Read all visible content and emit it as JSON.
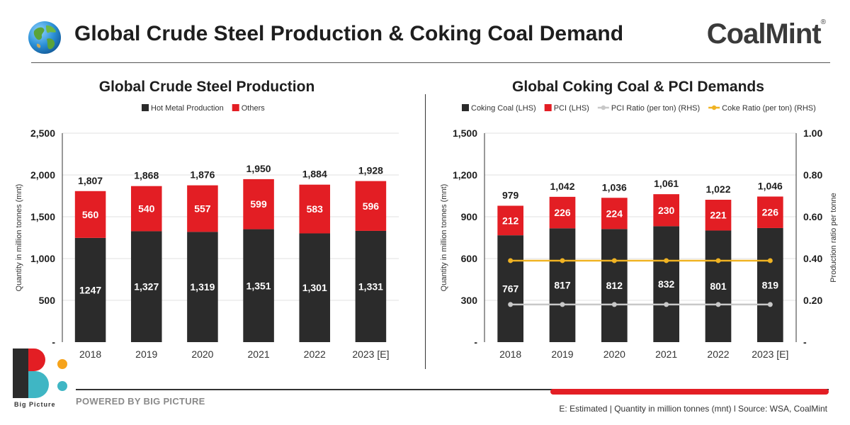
{
  "header": {
    "title": "Global Crude Steel Production & Coking Coal Demand",
    "brand": "CoalMint",
    "brand_mark": "®",
    "globe_icon": "globe-icon"
  },
  "footer": {
    "powered_by": "POWERED BY BIG PICTURE",
    "logo_caption": "Big Picture",
    "footnote": "E: Estimated | Quantity in million tonnes (mnt)  l  Source: WSA, CoalMint",
    "progress_fraction": 0.37
  },
  "colors": {
    "black": "#2b2b2b",
    "red": "#e31e24",
    "gray_line": "#c8c8c8",
    "gold_line": "#f0b323",
    "logo_orange": "#f6a31b",
    "logo_teal": "#3fb6c4"
  },
  "chart_data": [
    {
      "type": "bar",
      "stacked": true,
      "title": "Global Crude Steel Production",
      "categories": [
        "2018",
        "2019",
        "2020",
        "2021",
        "2022",
        "2023 [E]"
      ],
      "series": [
        {
          "name": "Hot Metal Production",
          "values": [
            1247,
            1327,
            1319,
            1351,
            1301,
            1331
          ],
          "labels": [
            "1247",
            "1,327",
            "1,319",
            "1,351",
            "1,301",
            "1,331"
          ]
        },
        {
          "name": "Others",
          "values": [
            560,
            540,
            557,
            599,
            583,
            596
          ],
          "labels": [
            "560",
            "540",
            "557",
            "599",
            "583",
            "596"
          ]
        }
      ],
      "totals": [
        "1,807",
        "1,868",
        "1,876",
        "1,950",
        "1,884",
        "1,928"
      ],
      "ylabel": "Quantity in million tonnes (mnt)",
      "ylim": [
        0,
        2500
      ],
      "yticks": [
        0,
        500,
        1000,
        1500,
        2000,
        2500
      ],
      "ytick_labels": [
        "-",
        "500",
        "1,000",
        "1,500",
        "2,000",
        "2,500"
      ],
      "grid": true,
      "legend": "top-center"
    },
    {
      "type": "bar",
      "stacked": true,
      "title": "Global Coking Coal & PCI Demands",
      "categories": [
        "2018",
        "2019",
        "2020",
        "2021",
        "2022",
        "2023 [E]"
      ],
      "series": [
        {
          "name": "Coking Coal (LHS)",
          "values": [
            767,
            817,
            812,
            832,
            801,
            819
          ],
          "labels": [
            "767",
            "817",
            "812",
            "832",
            "801",
            "819"
          ]
        },
        {
          "name": "PCI (LHS)",
          "values": [
            212,
            226,
            224,
            230,
            221,
            226
          ],
          "labels": [
            "212",
            "226",
            "224",
            "230",
            "221",
            "226"
          ]
        }
      ],
      "lines": [
        {
          "name": "PCI Ratio (per ton) (RHS)",
          "values": [
            0.18,
            0.18,
            0.18,
            0.18,
            0.18,
            0.18
          ]
        },
        {
          "name": "Coke Ratio (per ton) (RHS)",
          "values": [
            0.39,
            0.39,
            0.39,
            0.39,
            0.39,
            0.39
          ]
        }
      ],
      "totals": [
        "979",
        "1,042",
        "1,036",
        "1,061",
        "1,022",
        "1,046"
      ],
      "ylabel": "Quantity in million tonnes (mnt)",
      "ylim": [
        0,
        1500
      ],
      "yticks": [
        0,
        300,
        600,
        900,
        1200,
        1500
      ],
      "ytick_labels": [
        "-",
        "300",
        "600",
        "900",
        "1,200",
        "1,500"
      ],
      "y2label": "Production ratio per tonne",
      "y2lim": [
        0,
        1.0
      ],
      "y2ticks": [
        0,
        0.2,
        0.4,
        0.6,
        0.8,
        1.0
      ],
      "y2tick_labels": [
        "-",
        "0.20",
        "0.40",
        "0.60",
        "0.80",
        "1.00"
      ],
      "grid": true,
      "legend": "top-center"
    }
  ]
}
